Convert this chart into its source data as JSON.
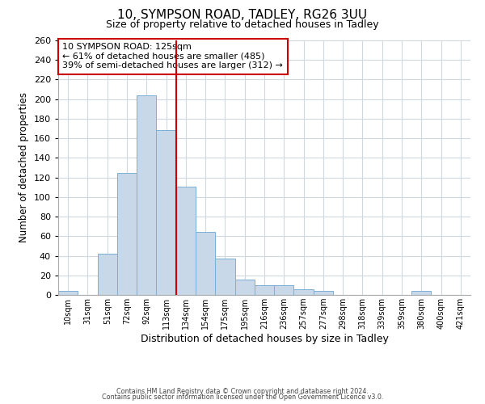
{
  "title": "10, SYMPSON ROAD, TADLEY, RG26 3UU",
  "subtitle": "Size of property relative to detached houses in Tadley",
  "xlabel": "Distribution of detached houses by size in Tadley",
  "ylabel": "Number of detached properties",
  "bar_labels": [
    "10sqm",
    "31sqm",
    "51sqm",
    "72sqm",
    "92sqm",
    "113sqm",
    "134sqm",
    "154sqm",
    "175sqm",
    "195sqm",
    "216sqm",
    "236sqm",
    "257sqm",
    "277sqm",
    "298sqm",
    "318sqm",
    "339sqm",
    "359sqm",
    "380sqm",
    "400sqm",
    "421sqm"
  ],
  "bar_values": [
    4,
    0,
    42,
    125,
    204,
    168,
    111,
    64,
    37,
    16,
    10,
    10,
    6,
    4,
    0,
    0,
    0,
    0,
    4,
    0,
    0
  ],
  "bar_color": "#c8d8e8",
  "bar_edgecolor": "#7bafd4",
  "vline_x": 5.5,
  "vline_color": "#cc0000",
  "annotation_text": "10 SYMPSON ROAD: 125sqm\n← 61% of detached houses are smaller (485)\n39% of semi-detached houses are larger (312) →",
  "annotation_box_edgecolor": "#cc0000",
  "ylim": [
    0,
    260
  ],
  "yticks": [
    0,
    20,
    40,
    60,
    80,
    100,
    120,
    140,
    160,
    180,
    200,
    220,
    240,
    260
  ],
  "footer1": "Contains HM Land Registry data © Crown copyright and database right 2024.",
  "footer2": "Contains public sector information licensed under the Open Government Licence v3.0.",
  "background_color": "#ffffff",
  "grid_color": "#d0d8e0"
}
